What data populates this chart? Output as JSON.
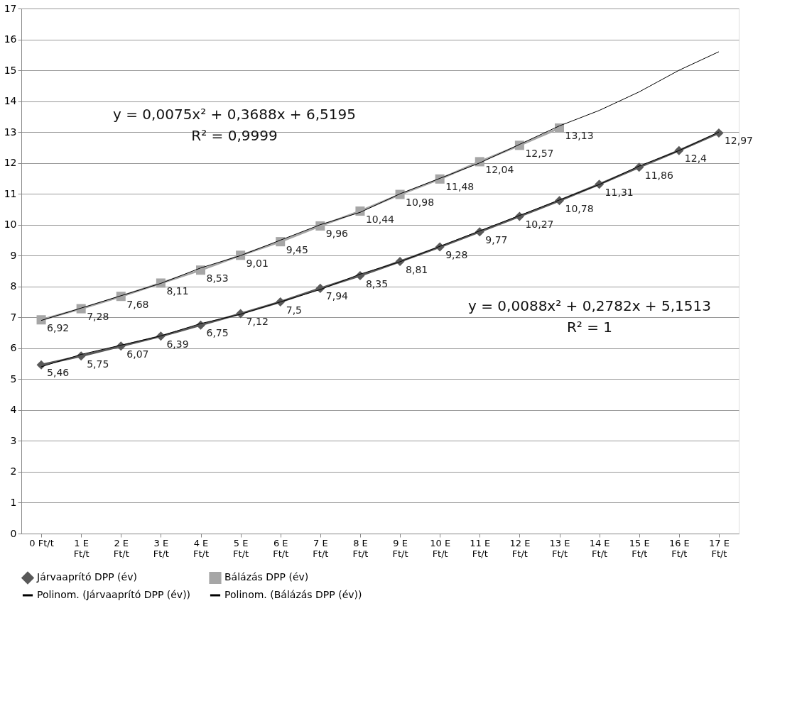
{
  "chart_data": {
    "type": "line",
    "categories": [
      "0 Ft/t",
      "1 E Ft/t",
      "2 E Ft/t",
      "3 E Ft/t",
      "4 E Ft/t",
      "5 E Ft/t",
      "6 E Ft/t",
      "7 E Ft/t",
      "8 E Ft/t",
      "9 E Ft/t",
      "10 E Ft/t",
      "11 E Ft/t",
      "12 E Ft/t",
      "13 E Ft/t",
      "14 E Ft/t",
      "15 E Ft/t",
      "16 E Ft/t",
      "17 E Ft/t"
    ],
    "series": [
      {
        "name": "Járvaaprító DPP (év)",
        "color": "#595959",
        "marker": "diamond",
        "values": [
          5.46,
          5.75,
          6.07,
          6.39,
          6.75,
          7.12,
          7.5,
          7.94,
          8.35,
          8.81,
          9.28,
          9.77,
          10.27,
          10.78,
          11.31,
          11.86,
          12.4,
          12.97
        ],
        "value_labels": [
          "5,46",
          "5,75",
          "6,07",
          "6,39",
          "6,75",
          "7,12",
          "7,5",
          "7,94",
          "8,35",
          "8,81",
          "9,28",
          "9,77",
          "10,27",
          "10,78",
          "11,31",
          "11,86",
          "12,4",
          "12,97"
        ]
      },
      {
        "name": "Bálázás DPP (év)",
        "color": "#a6a6a6",
        "marker": "square",
        "values": [
          6.92,
          7.28,
          7.68,
          8.11,
          8.53,
          9.01,
          9.45,
          9.96,
          10.44,
          10.98,
          11.48,
          12.04,
          12.57,
          13.13,
          null,
          null,
          null,
          null
        ],
        "value_labels": [
          "6,92",
          "7,28",
          "7,68",
          "8,11",
          "8,53",
          "9,01",
          "9,45",
          "9,96",
          "10,44",
          "10,98",
          "11,48",
          "12,04",
          "12,57",
          "13,13",
          null,
          null,
          null,
          null
        ]
      },
      {
        "name": "Polinom. (Járvaaprító DPP (év))",
        "color": "#000000",
        "marker": "none",
        "values": [
          5.4,
          5.8,
          6.1,
          6.4,
          6.8,
          7.1,
          7.5,
          7.9,
          8.4,
          8.8,
          9.3,
          9.8,
          10.3,
          10.8,
          11.3,
          11.9,
          12.4,
          13.0
        ]
      },
      {
        "name": "Polinom. (Bálázás DPP (év))",
        "color": "#000000",
        "marker": "none",
        "values": [
          6.9,
          7.3,
          7.7,
          8.1,
          8.6,
          9.0,
          9.5,
          10.0,
          10.4,
          11.0,
          11.5,
          12.0,
          12.6,
          13.2,
          13.7,
          14.3,
          15.0,
          15.6
        ]
      }
    ],
    "ylim": [
      0,
      17
    ],
    "yticks": [
      0,
      1,
      2,
      3,
      4,
      5,
      6,
      7,
      8,
      9,
      10,
      11,
      12,
      13,
      14,
      15,
      16,
      17
    ],
    "grid": "y",
    "legend": "bottom",
    "annotations": [
      "y = 0,0075x² + 0,3688x + 6,5195",
      "R² = 0,9999",
      "y = 0,0088x² + 0,2782x + 5,1513",
      "R² = 1"
    ]
  }
}
